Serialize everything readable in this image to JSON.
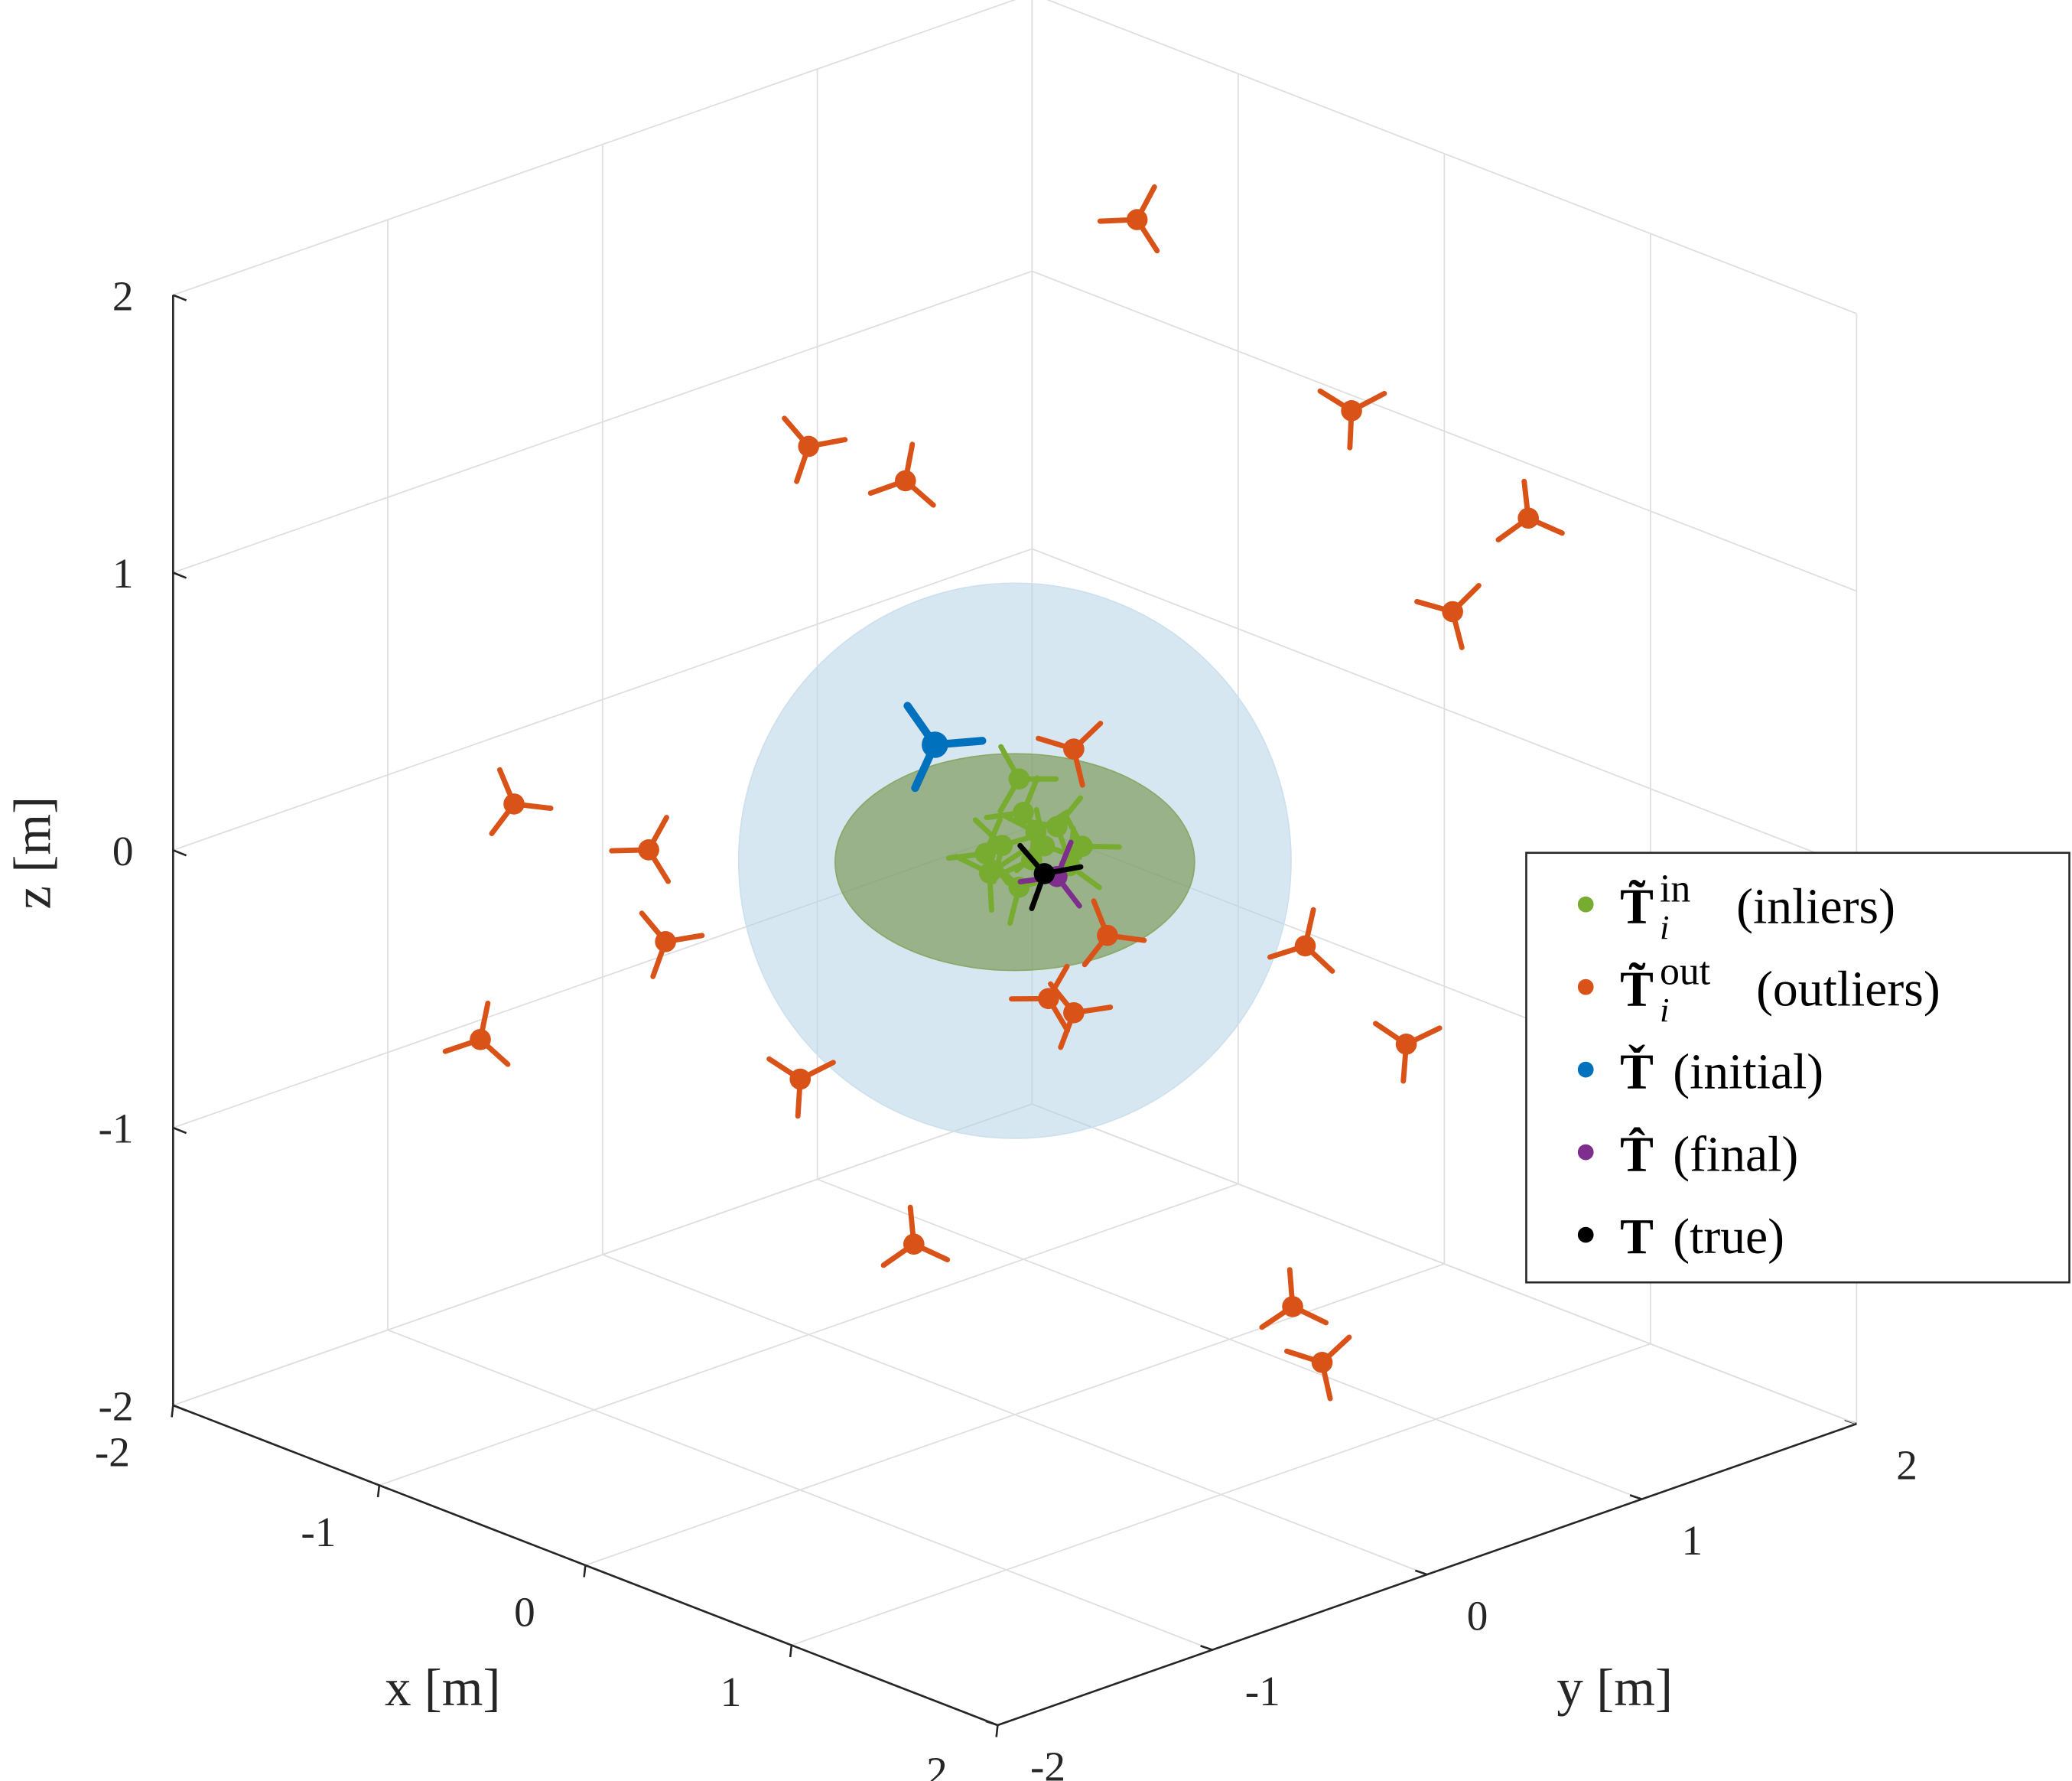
{
  "chart_data": {
    "type": "scatter3d",
    "xlabel": "x [m]",
    "ylabel": "y [m]",
    "zlabel": "z [m]",
    "xlim": [
      -2,
      2
    ],
    "ylim": [
      -2,
      2
    ],
    "zlim": [
      -2,
      2
    ],
    "xticks": [
      -2,
      -1,
      0,
      1,
      2
    ],
    "yticks": [
      -2,
      -1,
      0,
      1,
      2
    ],
    "zticks": [
      -2,
      -1,
      0,
      1,
      2
    ],
    "grid": true,
    "legend": "right",
    "series": [
      {
        "name": "(inliers)",
        "symbol": "T̃",
        "sup": "in",
        "sub": "i",
        "color": "#77AC30",
        "x": [
          0.01,
          0.02,
          -0.03,
          0.04,
          -0.06,
          0.07,
          0.1,
          0.16,
          -0.07,
          0.01,
          0.13,
          0.05
        ],
        "y": [
          0.01,
          0.02,
          -0.03,
          0.04,
          -0.06,
          0.07,
          0.1,
          0.16,
          -0.07,
          0.01,
          0.13,
          0.05
        ],
        "z": [
          0.29,
          0.17,
          0.05,
          0.0,
          -0.05,
          0.05,
          0.12,
          0.05,
          0.02,
          -0.1,
          -0.02,
          0.1
        ]
      },
      {
        "name": "(outliers)",
        "symbol": "T̃",
        "sup": "out",
        "sub": "i",
        "color": "#D95319",
        "x": [
          -0.73,
          -0.49,
          -0.26,
          0.8,
          1.22,
          1.04,
          -1.19,
          -0.87,
          -0.83,
          -1.27,
          -0.51,
          -0.24,
          0.14,
          0.22,
          0.08,
          0.14,
          0.69,
          0.93,
          0.66,
          0.73
        ],
        "y": [
          1.27,
          -0.49,
          -0.26,
          0.8,
          1.22,
          1.04,
          -1.19,
          -0.87,
          -0.83,
          -1.27,
          -0.51,
          -0.24,
          0.14,
          0.22,
          0.08,
          0.14,
          0.69,
          0.93,
          0.66,
          0.73
        ],
        "z": [
          1.75,
          1.48,
          1.36,
          1.63,
          1.25,
          0.91,
          0.18,
          0.02,
          -0.31,
          -0.67,
          -0.8,
          -1.39,
          0.4,
          -0.27,
          -0.5,
          -0.55,
          -0.3,
          -0.65,
          -1.6,
          -1.8
        ]
      },
      {
        "name": "(initial)",
        "symbol": "Ť",
        "color": "#0072BD",
        "x": [
          -0.19
        ],
        "y": [
          -0.19
        ],
        "z": [
          0.41
        ]
      },
      {
        "name": "(final)",
        "symbol": "T̂",
        "color": "#7E2F8E",
        "x": [
          0.1
        ],
        "y": [
          0.1
        ],
        "z": [
          -0.06
        ]
      },
      {
        "name": "(true)",
        "symbol": "T",
        "color": "#000000",
        "x": [
          0.07
        ],
        "y": [
          0.07
        ],
        "z": [
          -0.05
        ]
      }
    ]
  }
}
